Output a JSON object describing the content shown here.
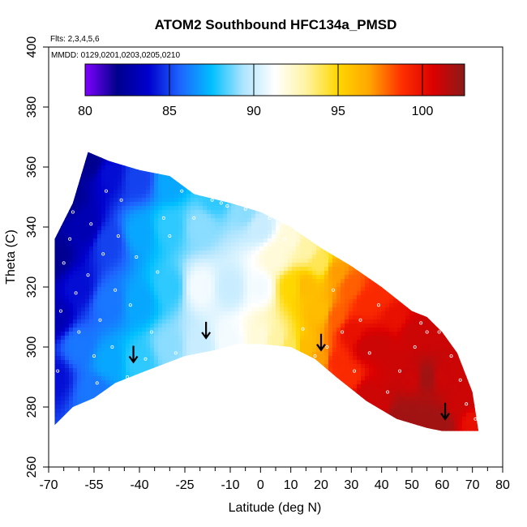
{
  "chart_data": {
    "type": "heatmap",
    "title": "ATOM2 Southbound HFC134a_PMSD",
    "annotations": [
      "Flts: 2,3,4,5,6",
      "MMDD: 0129,0201,0203,0205,0210"
    ],
    "xlabel": "Latitude (deg N)",
    "ylabel": "Theta (C)",
    "xlim": [
      -70,
      80
    ],
    "ylim": [
      260,
      400
    ],
    "x_ticks": [
      -70,
      -55,
      -40,
      -25,
      -10,
      0,
      10,
      20,
      30,
      40,
      50,
      60,
      70,
      80
    ],
    "x_tick_labels": [
      "-70",
      "-55",
      "-40",
      "-25",
      "-10",
      "0",
      "10",
      "20",
      "30",
      "40",
      "50",
      "60",
      "70",
      "80"
    ],
    "x_minor_ticks": [
      -65,
      -60,
      -50,
      -45,
      -35,
      -30,
      -20,
      -15,
      -5,
      5,
      15,
      25,
      35,
      45,
      55,
      65,
      75
    ],
    "y_ticks": [
      260,
      280,
      300,
      320,
      340,
      360,
      380,
      400
    ],
    "y_tick_labels": [
      "260",
      "280",
      "300",
      "320",
      "340",
      "360",
      "380",
      "400"
    ],
    "colorbar": {
      "range": [
        80,
        102.5
      ],
      "ticks": [
        80,
        85,
        90,
        95,
        100
      ],
      "tick_labels": [
        "80",
        "85",
        "90",
        "95",
        "100"
      ],
      "colors": [
        "#7f00ff",
        "#00008b",
        "#0000cd",
        "#1e64ff",
        "#00bfff",
        "#aee4ff",
        "#ffffff",
        "#fff3a0",
        "#ffd700",
        "#ffa500",
        "#ff3000",
        "#dc0000",
        "#8b1a1a"
      ]
    },
    "domain_top": [
      [
        -68,
        336
      ],
      [
        -62,
        348
      ],
      [
        -57,
        365
      ],
      [
        -50,
        362
      ],
      [
        -40,
        359
      ],
      [
        -30,
        357
      ],
      [
        -22,
        351
      ],
      [
        -10,
        348
      ],
      [
        0,
        345
      ],
      [
        10,
        340
      ],
      [
        20,
        333
      ],
      [
        30,
        327
      ],
      [
        40,
        320
      ],
      [
        50,
        312
      ],
      [
        55,
        310
      ],
      [
        60,
        305
      ],
      [
        65,
        298
      ],
      [
        70,
        285
      ],
      [
        72,
        272
      ]
    ],
    "domain_bottom": [
      [
        -68,
        274
      ],
      [
        -62,
        280
      ],
      [
        -55,
        283
      ],
      [
        -48,
        288
      ],
      [
        -38,
        292
      ],
      [
        -25,
        297
      ],
      [
        -15,
        299
      ],
      [
        -8,
        301
      ],
      [
        0,
        301
      ],
      [
        10,
        300
      ],
      [
        18,
        296
      ],
      [
        25,
        290
      ],
      [
        35,
        282
      ],
      [
        45,
        276
      ],
      [
        55,
        273
      ],
      [
        60,
        272
      ],
      [
        72,
        272
      ]
    ],
    "control_points": [
      [
        -68,
        290,
        84
      ],
      [
        -68,
        310,
        83
      ],
      [
        -68,
        330,
        82
      ],
      [
        -64,
        350,
        82
      ],
      [
        -60,
        300,
        86
      ],
      [
        -60,
        320,
        84
      ],
      [
        -58,
        340,
        83
      ],
      [
        -56,
        362,
        82
      ],
      [
        -55,
        285,
        86
      ],
      [
        -50,
        295,
        87
      ],
      [
        -50,
        315,
        86
      ],
      [
        -50,
        335,
        85
      ],
      [
        -50,
        358,
        84
      ],
      [
        -40,
        295,
        88
      ],
      [
        -40,
        315,
        87
      ],
      [
        -40,
        338,
        87
      ],
      [
        -40,
        356,
        85
      ],
      [
        -30,
        300,
        89
      ],
      [
        -30,
        320,
        88
      ],
      [
        -30,
        340,
        88
      ],
      [
        -30,
        355,
        87
      ],
      [
        -20,
        300,
        90
      ],
      [
        -20,
        320,
        91
      ],
      [
        -20,
        340,
        89
      ],
      [
        -15,
        350,
        88
      ],
      [
        -10,
        302,
        91
      ],
      [
        -10,
        320,
        90
      ],
      [
        -5,
        345,
        89
      ],
      [
        0,
        303,
        92
      ],
      [
        0,
        320,
        91
      ],
      [
        0,
        340,
        90
      ],
      [
        5,
        302,
        93
      ],
      [
        5,
        330,
        92
      ],
      [
        10,
        300,
        94
      ],
      [
        10,
        320,
        95
      ],
      [
        10,
        336,
        92
      ],
      [
        15,
        300,
        96
      ],
      [
        15,
        320,
        96
      ],
      [
        15,
        333,
        93
      ],
      [
        20,
        296,
        97
      ],
      [
        20,
        312,
        96
      ],
      [
        20,
        328,
        94
      ],
      [
        25,
        295,
        99
      ],
      [
        25,
        310,
        98
      ],
      [
        25,
        325,
        97
      ],
      [
        30,
        290,
        99
      ],
      [
        30,
        305,
        100
      ],
      [
        30,
        320,
        98
      ],
      [
        35,
        285,
        101
      ],
      [
        35,
        300,
        101
      ],
      [
        35,
        315,
        99
      ],
      [
        40,
        280,
        101
      ],
      [
        40,
        300,
        101
      ],
      [
        40,
        318,
        99
      ],
      [
        45,
        277,
        102
      ],
      [
        45,
        295,
        101
      ],
      [
        45,
        310,
        100
      ],
      [
        50,
        276,
        102
      ],
      [
        50,
        290,
        101
      ],
      [
        50,
        305,
        101
      ],
      [
        55,
        275,
        102
      ],
      [
        55,
        290,
        102
      ],
      [
        55,
        305,
        101
      ],
      [
        60,
        275,
        102
      ],
      [
        60,
        290,
        101
      ],
      [
        65,
        280,
        101
      ],
      [
        65,
        292,
        101
      ],
      [
        70,
        275,
        100
      ],
      [
        70,
        283,
        101
      ]
    ],
    "arrows": [
      [
        -42,
        295
      ],
      [
        -18,
        303
      ],
      [
        20,
        299
      ],
      [
        61,
        276
      ]
    ],
    "sample_points": [
      [
        -67,
        292
      ],
      [
        -66,
        312
      ],
      [
        -65,
        328
      ],
      [
        -63,
        336
      ],
      [
        -62,
        345
      ],
      [
        -61,
        318
      ],
      [
        -60,
        305
      ],
      [
        -57,
        324
      ],
      [
        -56,
        341
      ],
      [
        -55,
        297
      ],
      [
        -54,
        288
      ],
      [
        -53,
        309
      ],
      [
        -52,
        331
      ],
      [
        -51,
        352
      ],
      [
        -49,
        300
      ],
      [
        -48,
        319
      ],
      [
        -47,
        337
      ],
      [
        -46,
        349
      ],
      [
        -44,
        290
      ],
      [
        -43,
        314
      ],
      [
        -41,
        330
      ],
      [
        -38,
        296
      ],
      [
        -36,
        305
      ],
      [
        -34,
        325
      ],
      [
        -32,
        343
      ],
      [
        -30,
        337
      ],
      [
        -28,
        298
      ],
      [
        -26,
        352
      ],
      [
        -22,
        343
      ],
      [
        -20,
        351
      ],
      [
        -16,
        349
      ],
      [
        -13,
        348
      ],
      [
        -11,
        347
      ],
      [
        -8,
        350
      ],
      [
        -5,
        346
      ],
      [
        3,
        343
      ],
      [
        8,
        336
      ],
      [
        12,
        339
      ],
      [
        14,
        306
      ],
      [
        18,
        297
      ],
      [
        22,
        300
      ],
      [
        24,
        319
      ],
      [
        27,
        305
      ],
      [
        31,
        292
      ],
      [
        33,
        309
      ],
      [
        36,
        298
      ],
      [
        39,
        314
      ],
      [
        42,
        285
      ],
      [
        46,
        292
      ],
      [
        48,
        318
      ],
      [
        51,
        300
      ],
      [
        53,
        308
      ],
      [
        55,
        305
      ],
      [
        57,
        309
      ],
      [
        59,
        305
      ],
      [
        62,
        304
      ],
      [
        63,
        297
      ],
      [
        66,
        289
      ],
      [
        68,
        281
      ],
      [
        71,
        276
      ]
    ]
  }
}
